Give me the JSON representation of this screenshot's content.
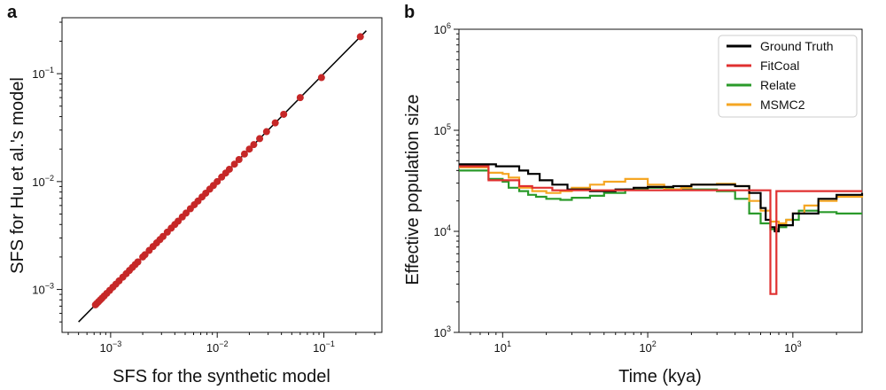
{
  "panel_a": {
    "letter": "a",
    "xlabel": "SFS for the synthetic model",
    "ylabel": "SFS for Hu et al.'s model",
    "x_ticks": [
      {
        "value": 0.001,
        "label": "10",
        "exp": "−3"
      },
      {
        "value": 0.01,
        "label": "10",
        "exp": "−2"
      },
      {
        "value": 0.1,
        "label": "10",
        "exp": "−1"
      }
    ],
    "y_ticks": [
      {
        "value": 0.001,
        "label": "10",
        "exp": "−3"
      },
      {
        "value": 0.01,
        "label": "10",
        "exp": "−2"
      },
      {
        "value": 0.1,
        "label": "10",
        "exp": "−1"
      }
    ]
  },
  "panel_b": {
    "letter": "b",
    "xlabel": "Time (kya)",
    "ylabel": "Effective population size",
    "x_ticks": [
      {
        "value": 10,
        "label": "10",
        "exp": "1"
      },
      {
        "value": 100,
        "label": "10",
        "exp": "2"
      },
      {
        "value": 1000,
        "label": "10",
        "exp": "3"
      }
    ],
    "y_ticks": [
      {
        "value": 1000,
        "label": "10",
        "exp": "3"
      },
      {
        "value": 10000,
        "label": "10",
        "exp": "4"
      },
      {
        "value": 100000,
        "label": "10",
        "exp": "5"
      },
      {
        "value": 1000000,
        "label": "10",
        "exp": "6"
      }
    ],
    "legend": [
      {
        "label": "Ground Truth",
        "color": "#000000"
      },
      {
        "label": "FitCoal",
        "color": "#e03030"
      },
      {
        "label": "Relate",
        "color": "#2a9a2a"
      },
      {
        "label": "MSMC2",
        "color": "#f5a623"
      }
    ]
  },
  "chart_data": [
    {
      "type": "scatter",
      "xscale": "log",
      "yscale": "log",
      "xlim": [
        0.00035,
        0.35
      ],
      "ylim": [
        0.0004,
        0.33
      ],
      "grid": false,
      "reference_line": {
        "from": [
          0.0005,
          0.0005
        ],
        "to": [
          0.25,
          0.25
        ],
        "color": "#000000"
      },
      "series": [
        {
          "color": "#c62828",
          "points": [
            [
              0.22,
              0.22
            ],
            [
              0.095,
              0.092
            ],
            [
              0.06,
              0.06
            ],
            [
              0.042,
              0.042
            ],
            [
              0.035,
              0.035
            ],
            [
              0.029,
              0.029
            ],
            [
              0.025,
              0.025
            ],
            [
              0.022,
              0.022
            ],
            [
              0.02,
              0.02
            ],
            [
              0.018,
              0.018
            ],
            [
              0.016,
              0.016
            ],
            [
              0.0145,
              0.0145
            ],
            [
              0.013,
              0.013
            ],
            [
              0.012,
              0.012
            ],
            [
              0.011,
              0.011
            ],
            [
              0.01,
              0.01
            ],
            [
              0.0092,
              0.0092
            ],
            [
              0.0085,
              0.0085
            ],
            [
              0.0078,
              0.0078
            ],
            [
              0.0072,
              0.0072
            ],
            [
              0.0066,
              0.0066
            ],
            [
              0.0061,
              0.0061
            ],
            [
              0.0056,
              0.0056
            ],
            [
              0.0051,
              0.0051
            ],
            [
              0.0047,
              0.0047
            ],
            [
              0.0043,
              0.0043
            ],
            [
              0.004,
              0.004
            ],
            [
              0.0037,
              0.0037
            ],
            [
              0.0034,
              0.0034
            ],
            [
              0.0031,
              0.0031
            ],
            [
              0.0029,
              0.0029
            ],
            [
              0.0027,
              0.0027
            ],
            [
              0.0025,
              0.0025
            ],
            [
              0.0023,
              0.0023
            ],
            [
              0.0021,
              0.0021
            ],
            [
              0.002,
              0.002
            ],
            [
              0.0018,
              0.0018
            ],
            [
              0.0017,
              0.0017
            ],
            [
              0.0016,
              0.0016
            ],
            [
              0.0015,
              0.0015
            ],
            [
              0.0014,
              0.0014
            ],
            [
              0.0013,
              0.0013
            ],
            [
              0.0012,
              0.0012
            ],
            [
              0.00112,
              0.00112
            ],
            [
              0.00105,
              0.00105
            ],
            [
              0.00098,
              0.00098
            ],
            [
              0.00092,
              0.00092
            ],
            [
              0.00087,
              0.00087
            ],
            [
              0.00083,
              0.00083
            ],
            [
              0.0008,
              0.0008
            ],
            [
              0.00077,
              0.00077
            ],
            [
              0.00074,
              0.00074
            ],
            [
              0.00072,
              0.00072
            ]
          ]
        }
      ]
    },
    {
      "type": "line",
      "xscale": "log",
      "yscale": "log",
      "xlim": [
        5,
        3000
      ],
      "ylim": [
        1000,
        1000000
      ],
      "grid": false,
      "legend_position": "top-right",
      "series": [
        {
          "name": "Ground Truth",
          "color": "#000000",
          "x": [
            5,
            7,
            9,
            11,
            13,
            15,
            18,
            22,
            28,
            40,
            60,
            80,
            100,
            150,
            200,
            300,
            400,
            500,
            600,
            650,
            700,
            750,
            800,
            1000,
            1500,
            2000,
            3000
          ],
          "y": [
            46000,
            46000,
            44000,
            44000,
            40000,
            37000,
            32000,
            29000,
            26000,
            25000,
            26000,
            27000,
            27500,
            28000,
            29000,
            29000,
            28000,
            24000,
            17000,
            13000,
            11000,
            10000,
            11500,
            15000,
            21000,
            23000,
            24000
          ]
        },
        {
          "name": "FitCoal",
          "color": "#e03030",
          "x": [
            5,
            7,
            8,
            11,
            13,
            16,
            22,
            700,
            700,
            770,
            770,
            3000
          ],
          "y": [
            44000,
            44000,
            32000,
            32000,
            28000,
            27000,
            25500,
            25500,
            2400,
            2400,
            25000,
            25000
          ]
        },
        {
          "name": "Relate",
          "color": "#2a9a2a",
          "x": [
            5,
            7,
            8,
            10,
            11,
            13,
            15,
            17,
            20,
            25,
            30,
            40,
            50,
            70,
            100,
            150,
            200,
            300,
            400,
            500,
            600,
            700,
            800,
            900,
            1100,
            1500,
            2000,
            3000
          ],
          "y": [
            40000,
            40000,
            33000,
            31000,
            27000,
            25000,
            23000,
            22000,
            21000,
            20500,
            21500,
            22500,
            24000,
            26000,
            27000,
            26000,
            26000,
            25000,
            21000,
            15000,
            12000,
            10500,
            11000,
            13000,
            16000,
            15500,
            15000,
            15000
          ]
        },
        {
          "name": "MSMC2",
          "color": "#f5a623",
          "x": [
            5,
            7,
            8,
            10,
            11,
            13,
            16,
            20,
            25,
            30,
            40,
            50,
            70,
            100,
            130,
            170,
            200,
            300,
            400,
            500,
            600,
            700,
            800,
            900,
            1000,
            1200,
            1500,
            2000,
            3000
          ],
          "y": [
            43000,
            43000,
            38000,
            37000,
            34000,
            27000,
            25000,
            24000,
            25000,
            27000,
            29000,
            31000,
            33000,
            29000,
            26000,
            27000,
            29000,
            29500,
            28000,
            20000,
            16000,
            12500,
            12000,
            13000,
            15000,
            18000,
            20000,
            22000,
            22500
          ]
        }
      ]
    }
  ]
}
